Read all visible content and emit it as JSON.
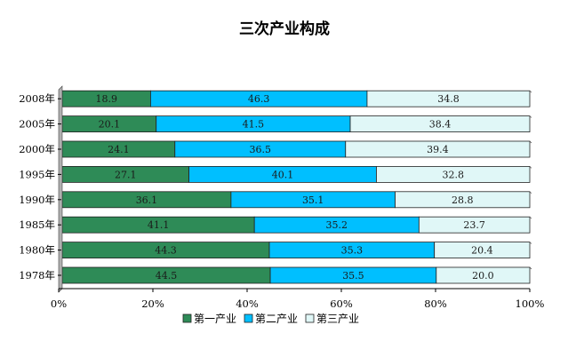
{
  "chart_data": {
    "type": "bar",
    "orientation": "horizontal",
    "stacked": true,
    "percent": true,
    "title": "三次产业构成",
    "xlabel": "",
    "ylabel": "",
    "xlim": [
      0,
      100
    ],
    "x_ticks": [
      "0%",
      "20%",
      "40%",
      "60%",
      "80%",
      "100%"
    ],
    "categories": [
      "1978年",
      "1980年",
      "1985年",
      "1990年",
      "1995年",
      "2000年",
      "2005年",
      "2008年"
    ],
    "series": [
      {
        "name": "第一产业",
        "color": "#2e8b57",
        "values": [
          44.5,
          44.3,
          41.1,
          36.1,
          27.1,
          24.1,
          20.1,
          18.9
        ],
        "labels": [
          "44.5",
          "44.3",
          "41.1",
          "36.1",
          "27.1",
          "24.1",
          "20.1",
          "18.9"
        ]
      },
      {
        "name": "第二产业",
        "color": "#00bfff",
        "values": [
          35.5,
          35.3,
          35.2,
          35.1,
          40.1,
          36.5,
          41.5,
          46.3
        ],
        "labels": [
          "35.5",
          "35.3",
          "35.2",
          "35.1",
          "40.1",
          "36.5",
          "41.5",
          "46.3"
        ]
      },
      {
        "name": "第三产业",
        "color": "#e0f7f7",
        "values": [
          20.0,
          20.4,
          23.7,
          28.8,
          32.8,
          39.4,
          38.4,
          34.8
        ],
        "labels": [
          "20.0",
          "20.4",
          "23.7",
          "28.8",
          "32.8",
          "39.4",
          "38.4",
          "34.8"
        ]
      }
    ],
    "legend_position": "bottom",
    "grid": false
  }
}
